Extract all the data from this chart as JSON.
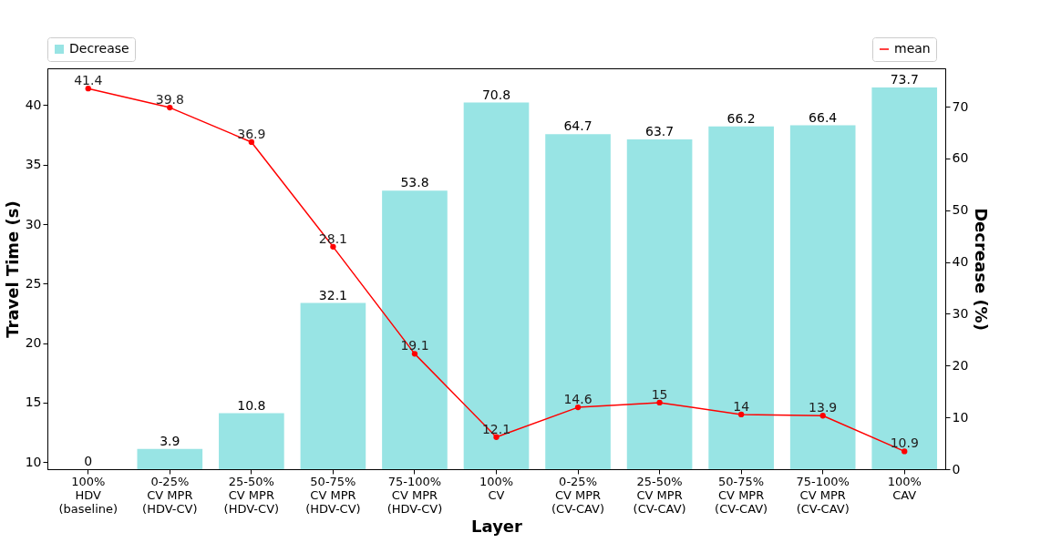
{
  "chart_data": {
    "type": "bar",
    "xlabel": "Layer",
    "ylabel": "Travel Time (s)",
    "y2label": "Decrease (%)",
    "categories": [
      "100%\nHDV\n(baseline)",
      "0-25%\nCV MPR\n(HDV-CV)",
      "25-50%\nCV MPR\n(HDV-CV)",
      "50-75%\nCV MPR\n(HDV-CV)",
      "75-100%\nCV MPR\n(HDV-CV)",
      "100%\nCV",
      "0-25%\nCV MPR\n(CV-CAV)",
      "25-50%\nCV MPR\n(CV-CAV)",
      "50-75%\nCV MPR\n(CV-CAV)",
      "75-100%\nCV MPR\n(CV-CAV)",
      "100%\nCAV"
    ],
    "series": [
      {
        "name": "Decrease",
        "axis": "y2",
        "color": "#98e4e4",
        "values": [
          0,
          3.9,
          10.8,
          32.1,
          53.8,
          70.8,
          64.7,
          63.7,
          66.2,
          66.4,
          73.7
        ]
      },
      {
        "name": "mean",
        "type": "line",
        "axis": "y",
        "color": "#ff0000",
        "values": [
          41.4,
          39.8,
          36.9,
          28.1,
          19.1,
          12.1,
          14.6,
          15,
          14,
          13.9,
          10.9
        ]
      }
    ],
    "ylim": [
      9.4,
      43.1
    ],
    "yticks": [
      10,
      15,
      20,
      25,
      30,
      35,
      40
    ],
    "y2lim": [
      0,
      77.4
    ],
    "y2ticks": [
      0,
      10,
      20,
      30,
      40,
      50,
      60,
      70
    ],
    "data_labels": true,
    "grid": false,
    "legend": "top",
    "marker": "circle",
    "line_style": "solid"
  }
}
